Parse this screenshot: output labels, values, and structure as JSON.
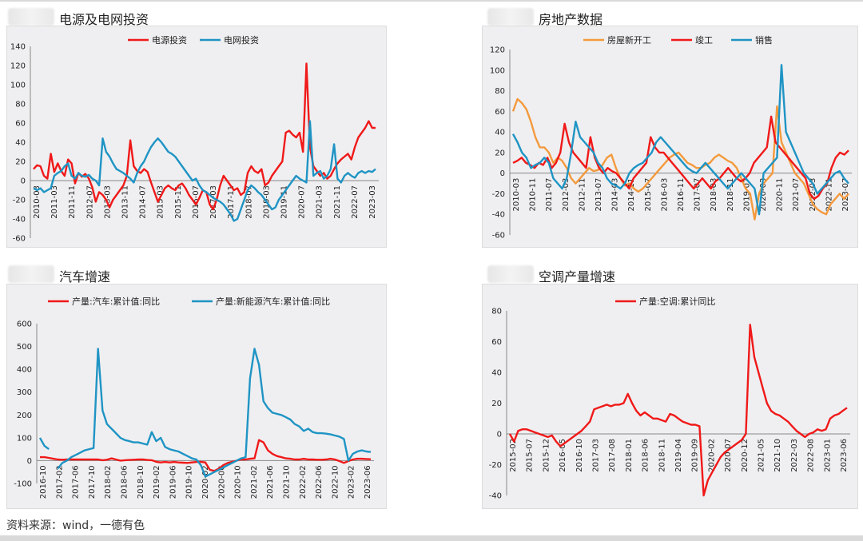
{
  "panels": [
    {
      "title": "电源及电网投资"
    },
    {
      "title": "房地产数据"
    },
    {
      "title": "汽车增速"
    },
    {
      "title": "空调产量增速"
    }
  ],
  "source_text": "资料来源：wind，一德有色",
  "colors": {
    "red": "#f01919",
    "blue": "#1f94c4",
    "orange": "#f39a3d"
  },
  "chart_data": [
    {
      "type": "line",
      "title": "电源及电网投资",
      "ylim": [
        -60,
        140
      ],
      "yticks": [
        -60,
        -40,
        -20,
        0,
        20,
        40,
        60,
        80,
        100,
        120,
        140
      ],
      "xlabels": [
        "2010-03",
        "2011-03",
        "2011-11",
        "2012-07",
        "2013-03",
        "2013-11",
        "2014-07",
        "2015-03",
        "2015-11",
        "2016-07",
        "2017-03",
        "2017-11",
        "2018-07",
        "2019-03",
        "2019-11",
        "2020-07",
        "2021-03",
        "2021-11",
        "2022-07",
        "2023-03"
      ],
      "series": [
        {
          "name": "电源投资",
          "color": "#f01919",
          "values": [
            12,
            16,
            15,
            5,
            2,
            28,
            9,
            18,
            10,
            5,
            22,
            18,
            -3,
            8,
            4,
            7,
            2,
            -7,
            -22,
            -12,
            -15,
            -20,
            -28,
            -20,
            -15,
            -10,
            -5,
            5,
            42,
            15,
            10,
            8,
            12,
            9,
            -2,
            -12,
            -22,
            -15,
            -8,
            -5,
            -8,
            -10,
            -5,
            -3,
            -8,
            -15,
            -20,
            -25,
            -18,
            -10,
            -12,
            -25,
            -30,
            -20,
            -5,
            5,
            0,
            -5,
            -10,
            -8,
            -15,
            -12,
            8,
            15,
            10,
            8,
            12,
            -5,
            -2,
            5,
            10,
            15,
            20,
            50,
            52,
            48,
            45,
            50,
            30,
            122,
            35,
            15,
            10,
            5,
            8,
            2,
            5,
            12,
            18,
            22,
            25,
            28,
            22,
            35,
            45,
            50,
            55,
            62,
            55,
            55
          ]
        },
        {
          "name": "电网投资",
          "color": "#1f94c4",
          "values": [
            -8,
            -10,
            -8,
            -12,
            -10,
            -8,
            5,
            8,
            10,
            15,
            18,
            5,
            2,
            8,
            5,
            4,
            6,
            2,
            0,
            -5,
            44,
            30,
            25,
            18,
            12,
            10,
            8,
            5,
            2,
            -2,
            8,
            15,
            20,
            28,
            35,
            40,
            44,
            40,
            35,
            30,
            28,
            25,
            20,
            15,
            10,
            5,
            0,
            2,
            -5,
            -10,
            -12,
            -15,
            -18,
            -20,
            -22,
            -25,
            -30,
            -35,
            -42,
            -40,
            -30,
            -20,
            -10,
            -5,
            -8,
            -12,
            -15,
            -20,
            -25,
            -30,
            -28,
            -20,
            -15,
            -10,
            -5,
            0,
            5,
            2,
            0,
            -2,
            62,
            5,
            8,
            10,
            2,
            5,
            12,
            38,
            2,
            -2,
            5,
            8,
            5,
            3,
            8,
            10,
            8,
            10,
            9,
            12
          ]
        }
      ]
    },
    {
      "type": "line",
      "title": "房地产数据",
      "ylim": [
        -60,
        120
      ],
      "yticks": [
        -60,
        -40,
        -20,
        0,
        20,
        40,
        60,
        80,
        100,
        120
      ],
      "xlabels": [
        "2010-03",
        "2010-11",
        "2011-07",
        "2012-03",
        "2012-11",
        "2013-07",
        "2014-03",
        "2014-11",
        "2015-07",
        "2016-03",
        "2016-11",
        "2017-07",
        "2018-03",
        "2018-11",
        "2019-07",
        "2020-03",
        "2020-11",
        "2021-07",
        "2022-03",
        "2022-11",
        "2023-07"
      ],
      "series": [
        {
          "name": "房屋新开工",
          "color": "#f39a3d",
          "values": [
            60,
            72,
            68,
            62,
            50,
            35,
            25,
            25,
            20,
            10,
            15,
            12,
            5,
            -5,
            -10,
            -5,
            0,
            5,
            2,
            3,
            8,
            15,
            18,
            5,
            -5,
            -12,
            -10,
            -15,
            -18,
            -15,
            -10,
            -5,
            0,
            5,
            10,
            15,
            18,
            20,
            15,
            10,
            8,
            5,
            5,
            8,
            10,
            15,
            18,
            15,
            12,
            10,
            5,
            -5,
            -15,
            -20,
            -45,
            -20,
            -10,
            -5,
            0,
            65,
            30,
            20,
            10,
            0,
            -5,
            -10,
            -20,
            -30,
            -35,
            -38,
            -40,
            -30,
            -25,
            -20,
            -25,
            -20
          ]
        },
        {
          "name": "竣工",
          "color": "#f01919",
          "values": [
            10,
            12,
            15,
            10,
            8,
            5,
            10,
            8,
            15,
            5,
            10,
            20,
            48,
            30,
            20,
            15,
            10,
            5,
            35,
            15,
            5,
            0,
            5,
            2,
            0,
            -5,
            -10,
            -15,
            -5,
            0,
            5,
            10,
            35,
            25,
            20,
            20,
            15,
            10,
            5,
            0,
            -5,
            -10,
            -15,
            -10,
            -5,
            -10,
            -15,
            -8,
            -5,
            0,
            5,
            0,
            -5,
            -8,
            -5,
            0,
            10,
            15,
            20,
            25,
            55,
            30,
            25,
            20,
            15,
            10,
            5,
            0,
            -5,
            -20,
            -25,
            -22,
            -15,
            -10,
            5,
            15,
            20,
            18,
            22
          ]
        },
        {
          "name": "销售",
          "color": "#1f94c4",
          "values": [
            38,
            30,
            20,
            15,
            5,
            8,
            10,
            15,
            10,
            -5,
            -10,
            -15,
            -5,
            20,
            50,
            35,
            30,
            25,
            20,
            10,
            5,
            -5,
            -10,
            -12,
            -15,
            -10,
            0,
            5,
            8,
            10,
            15,
            20,
            30,
            35,
            30,
            25,
            20,
            15,
            10,
            5,
            2,
            0,
            5,
            10,
            5,
            0,
            -5,
            -10,
            -15,
            -10,
            -5,
            0,
            -5,
            -10,
            -15,
            -40,
            0,
            5,
            10,
            15,
            105,
            40,
            30,
            20,
            10,
            0,
            -5,
            -10,
            -20,
            -15,
            -10,
            -5,
            0,
            2,
            -5,
            -10
          ]
        }
      ]
    },
    {
      "type": "line",
      "title": "汽车增速",
      "ylim": [
        -100,
        600
      ],
      "yticks": [
        -100,
        0,
        100,
        200,
        300,
        400,
        500,
        600
      ],
      "xlabels": [
        "2016-10",
        "2017-02",
        "2017-06",
        "2017-10",
        "2018-02",
        "2018-06",
        "2018-10",
        "2019-02",
        "2019-06",
        "2019-10",
        "2020-02",
        "2020-06",
        "2020-10",
        "2021-02",
        "2021-06",
        "2021-10",
        "2022-02",
        "2022-06",
        "2022-10",
        "2023-02",
        "2023-06"
      ],
      "series": [
        {
          "name": "产量:汽车:累计值:同比",
          "color": "#f01919",
          "values": [
            15,
            15,
            12,
            8,
            5,
            4,
            5,
            5,
            5,
            5,
            5,
            5,
            5,
            5,
            2,
            4,
            10,
            5,
            0,
            2,
            3,
            4,
            5,
            5,
            3,
            2,
            -5,
            -8,
            -6,
            -8,
            -6,
            -8,
            -9,
            -10,
            -8,
            -6,
            -5,
            -8,
            -40,
            -45,
            -35,
            -20,
            -10,
            -5,
            0,
            5,
            5,
            8,
            10,
            90,
            80,
            45,
            30,
            20,
            15,
            10,
            8,
            5,
            5,
            8,
            5,
            5,
            4,
            4,
            5,
            8,
            5,
            -2,
            -10,
            -2,
            5,
            8,
            8,
            7,
            6
          ]
        },
        {
          "name": "产量:新能源汽车:累计值:同比",
          "color": "#1f94c4",
          "values": [
            100,
            65,
            50,
            null,
            -35,
            -10,
            0,
            15,
            25,
            35,
            45,
            50,
            55,
            490,
            220,
            160,
            140,
            120,
            100,
            90,
            85,
            80,
            80,
            75,
            70,
            125,
            85,
            100,
            60,
            50,
            45,
            40,
            30,
            20,
            10,
            5,
            -20,
            -70,
            -60,
            -50,
            -40,
            -30,
            -20,
            -10,
            0,
            10,
            15,
            360,
            490,
            420,
            260,
            230,
            210,
            205,
            200,
            190,
            180,
            160,
            150,
            130,
            140,
            125,
            120,
            120,
            118,
            115,
            110,
            105,
            95,
            0,
            30,
            40,
            45,
            40,
            38
          ]
        }
      ]
    },
    {
      "type": "line",
      "title": "空调产量增速",
      "ylim": [
        -40,
        80
      ],
      "yticks": [
        -40,
        -20,
        0,
        20,
        40,
        60,
        80
      ],
      "xlabels": [
        "2015-02",
        "2015-07",
        "2015-12",
        "2016-05",
        "2016-10",
        "2017-03",
        "2017-08",
        "2018-01",
        "2018-06",
        "2018-11",
        "2019-04",
        "2019-09",
        "2020-02",
        "2020-07",
        "2020-12",
        "2021-05",
        "2021-10",
        "2022-03",
        "2022-08",
        "2023-01",
        "2023-06"
      ],
      "series": [
        {
          "name": "产量:空调:累计同比",
          "color": "#f01919",
          "values": [
            0,
            -5,
            2,
            3,
            3,
            2,
            1,
            0,
            -1,
            -2,
            -1,
            -5,
            -8,
            -6,
            -4,
            -2,
            0,
            2,
            5,
            8,
            16,
            17,
            18,
            19,
            18,
            19,
            19,
            20,
            26,
            20,
            15,
            12,
            14,
            12,
            10,
            10,
            9,
            8,
            13,
            12,
            10,
            8,
            7,
            6,
            6,
            5,
            -40,
            -30,
            -25,
            -20,
            -15,
            -12,
            -10,
            -8,
            -6,
            -4,
            0,
            71,
            50,
            40,
            30,
            20,
            15,
            13,
            12,
            10,
            8,
            5,
            2,
            0,
            -2,
            0,
            1,
            3,
            2,
            3,
            10,
            12,
            13,
            15,
            17
          ]
        }
      ]
    }
  ]
}
